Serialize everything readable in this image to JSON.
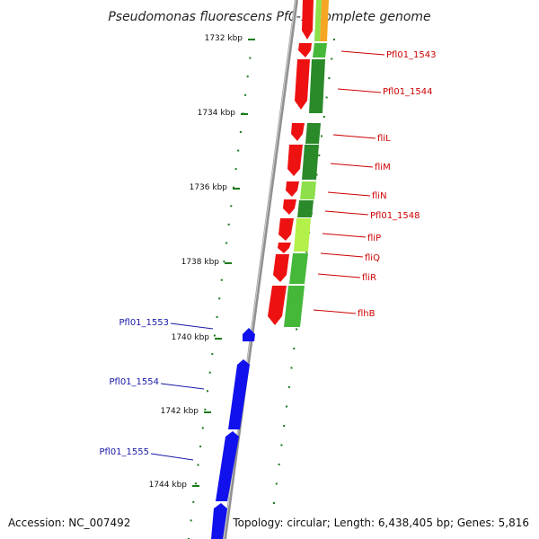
{
  "title": "Pseudomonas fluorescens Pf0-1, complete genome",
  "footer": {
    "accession": "Accession: NC_007492",
    "topology": "Topology: circular; Length: 6,438,405 bp; Genes: 5,816"
  },
  "ticks": [
    "1732 kbp",
    "1734 kbp",
    "1736 kbp",
    "1738 kbp",
    "1740 kbp",
    "1742 kbp",
    "1744 kbp"
  ],
  "genes_right": [
    "Pfl01_1543",
    "Pfl01_1544",
    "fliL",
    "fliM",
    "fliN",
    "Pfl01_1548",
    "fliP",
    "fliQ",
    "fliR",
    "flhB"
  ],
  "genes_left": [
    "Pfl01_1553",
    "Pfl01_1554",
    "Pfl01_1555"
  ],
  "colors": {
    "forward_gene": "#ee1111",
    "reverse_gene": "#1111ee",
    "backbone": "#888888",
    "tick": "#1a7a1a",
    "cog_dark": "#2a8a2a",
    "cog_light": "#8ee04a",
    "cog_orange": "#f5a623"
  }
}
